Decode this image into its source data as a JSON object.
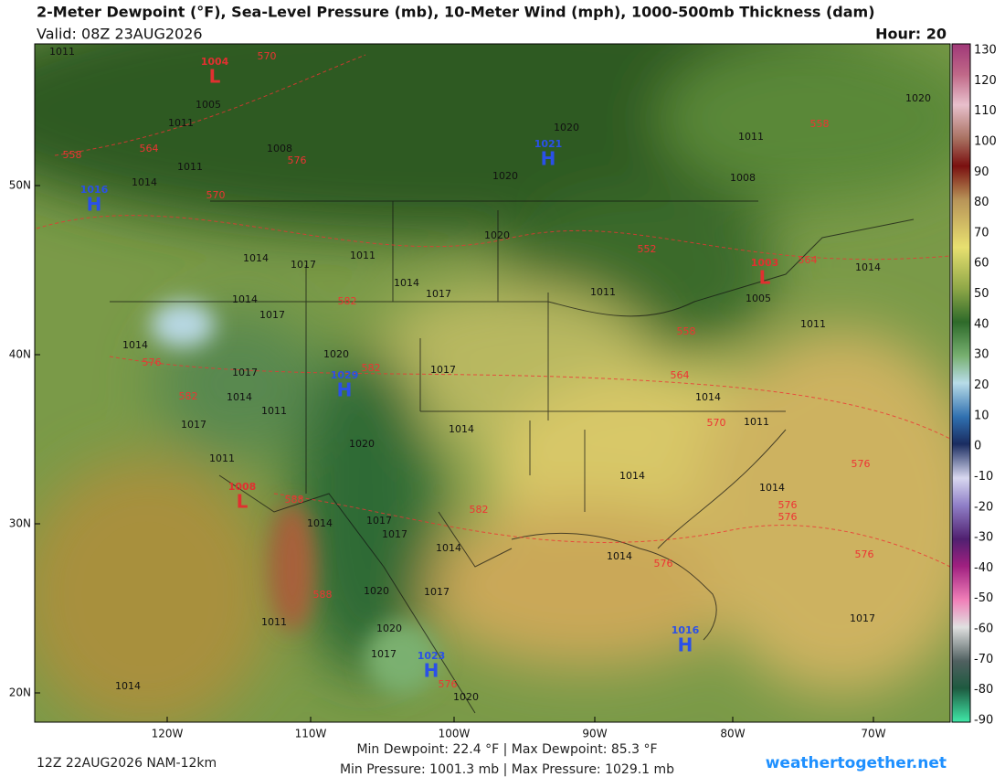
{
  "header": {
    "title": "2-Meter Dewpoint (°F), Sea-Level Pressure (mb), 10-Meter Wind (mph), 1000-500mb Thickness (dam)",
    "valid": "Valid: 08Z 23AUG2026",
    "hour": "Hour: 20"
  },
  "colorbar": {
    "labels": [
      130,
      120,
      110,
      100,
      90,
      80,
      70,
      60,
      50,
      40,
      30,
      20,
      10,
      0,
      -10,
      -20,
      -30,
      -40,
      -50,
      -60,
      -70,
      -80,
      -90
    ]
  },
  "latitude_labels": [
    "50N",
    "40N",
    "30N",
    "20N"
  ],
  "longitude_labels": [
    "120W",
    "110W",
    "100W",
    "90W",
    "80W",
    "70W"
  ],
  "pressure_centers": [
    {
      "symbol": "L",
      "value": "1004"
    },
    {
      "symbol": "H",
      "value": "1021"
    },
    {
      "symbol": "H",
      "value": "1016"
    },
    {
      "symbol": "L",
      "value": "1003"
    },
    {
      "symbol": "H",
      "value": "1029"
    },
    {
      "symbol": "L",
      "value": "1008"
    },
    {
      "symbol": "H",
      "value": "1023"
    },
    {
      "symbol": "H",
      "value": "1016"
    }
  ],
  "isobar_labels": [
    "1011",
    "1005",
    "1011",
    "1008",
    "1011",
    "1014",
    "1020",
    "1011",
    "1008",
    "1020",
    "1020",
    "1020",
    "1011",
    "1014",
    "1017",
    "1014",
    "1017",
    "1014",
    "1017",
    "1011",
    "1005",
    "1014",
    "1011",
    "1014",
    "1020",
    "1017",
    "1017",
    "1014",
    "1017",
    "1011",
    "1014",
    "1014",
    "1011",
    "1020",
    "1011",
    "1014",
    "1014",
    "1014",
    "1017",
    "1017",
    "1014",
    "1014",
    "1020",
    "1017",
    "1011",
    "1020",
    "1017",
    "1020",
    "1014",
    "1017"
  ],
  "thickness_labels": [
    "570",
    "564",
    "558",
    "576",
    "570",
    "558",
    "552",
    "564",
    "582",
    "558",
    "576",
    "582",
    "564",
    "582",
    "570",
    "576",
    "588",
    "582",
    "576",
    "576",
    "576",
    "576",
    "588",
    "576"
  ],
  "footer": {
    "run": "12Z 22AUG2026 NAM-12km",
    "dewpoint_range": "Min Dewpoint:  22.4 °F | Max Dewpoint:  85.3 °F",
    "pressure_range": "Min Pressure: 1001.3 mb | Max Pressure: 1029.1 mb",
    "site": "weathertogether.net"
  }
}
